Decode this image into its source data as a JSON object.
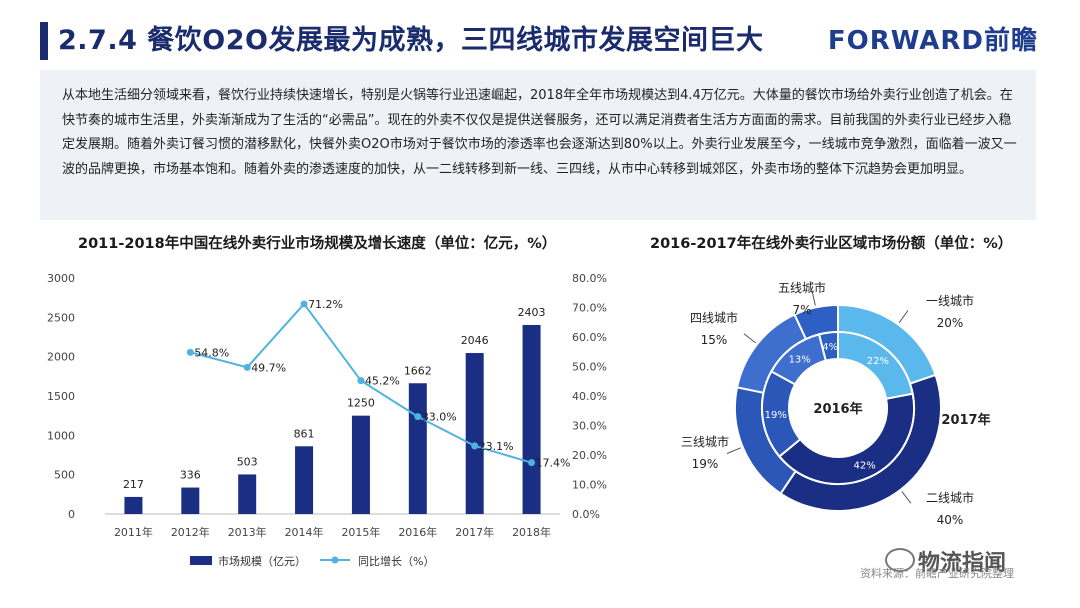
{
  "header": {
    "title": "2.7.4 餐饮O2O发展最为成熟，三四线城市发展空间巨大",
    "logo": "FORWARD前瞻"
  },
  "intro": {
    "text": "从本地生活细分领域来看，餐饮行业持续快速增长，特别是火锅等行业迅速崛起，2018年全年市场规模达到4.4万亿元。大体量的餐饮市场给外卖行业创造了机会。在快节奏的城市生活里，外卖渐渐成为了生活的“必需品”。现在的外卖不仅仅是提供送餐服务，还可以满足消费者生活方方面面的需求。目前我国的外卖行业已经步入稳定发展期。随着外卖订餐习惯的潜移默化，快餐外卖O2O市场对于餐饮市场的渗透率也会逐渐达到80%以上。外卖行业发展至今，一线城市竞争激烈，面临着一波又一波的品牌更换，市场基本饱和。随着外卖的渗透速度的加快，从一二线转移到新一线、三四线，从市中心转移到城郊区，外卖市场的整体下沉趋势会更加明显。"
  },
  "footer": {
    "source": "资料来源：前瞻产业研究院整理",
    "wechat": "物流指闻"
  },
  "colors": {
    "bar": "#1a2f84",
    "line": "#4fb3e0",
    "title": "#1a2b6e",
    "tier1": "#5ab8ec",
    "tier2": "#1a2f84",
    "tier3": "#2a57b8",
    "tier4": "#3e6fcf",
    "tier5": "#2d5fc4"
  },
  "chart_data": [
    {
      "type": "bar",
      "title": "2011-2018年中国在线外卖行业市场规模及增长速度（单位：亿元，%）",
      "categories": [
        "2011年",
        "2012年",
        "2013年",
        "2014年",
        "2015年",
        "2016年",
        "2017年",
        "2018年"
      ],
      "series": [
        {
          "name": "市场规模（亿元）",
          "type": "bar",
          "axis": "left",
          "values": [
            217,
            336,
            503,
            861,
            1250,
            1662,
            2046,
            2403
          ],
          "labels": [
            "217",
            "336",
            "503",
            "861",
            "1250",
            "1662",
            "2046",
            "2403"
          ]
        },
        {
          "name": "同比增长（%）",
          "type": "line",
          "axis": "right",
          "values": [
            null,
            54.8,
            49.7,
            71.2,
            45.2,
            33.0,
            23.1,
            17.4
          ],
          "labels": [
            "",
            "54.8%",
            "49.7%",
            "71.2%",
            "45.2%",
            "33.0%",
            "23.1%",
            "17.4%"
          ]
        }
      ],
      "ylim": [
        0,
        3000
      ],
      "y_ticks": [
        "0",
        "500",
        "1000",
        "1500",
        "2000",
        "2500",
        "3000"
      ],
      "y2lim": [
        0,
        80
      ],
      "y2_ticks": [
        "0.0%",
        "10.0%",
        "20.0%",
        "30.0%",
        "40.0%",
        "50.0%",
        "60.0%",
        "70.0%",
        "80.0%"
      ],
      "legend_position": "bottom"
    },
    {
      "type": "pie",
      "title": "2016-2017年在线外卖行业区域市场份额（单位：%）",
      "center_label": "2016年",
      "outer_ring_label": "2017年",
      "categories": [
        "一线城市",
        "二线城市",
        "三线城市",
        "四线城市",
        "五线城市"
      ],
      "outer_2017": [
        20,
        40,
        19,
        15,
        7
      ],
      "outer_labels": [
        "20%",
        "40%",
        "19%",
        "15%",
        "7%"
      ],
      "inner_2016": [
        22,
        42,
        19,
        13,
        4
      ],
      "inner_labels": [
        "22%",
        "42%",
        "19%",
        "13%",
        "4%"
      ]
    }
  ]
}
